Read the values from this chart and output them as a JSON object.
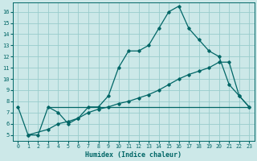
{
  "xlabel": "Humidex (Indice chaleur)",
  "xlim": [
    -0.5,
    23.5
  ],
  "ylim": [
    4.5,
    16.8
  ],
  "yticks": [
    5,
    6,
    7,
    8,
    9,
    10,
    11,
    12,
    13,
    14,
    15,
    16
  ],
  "xticks": [
    0,
    1,
    2,
    3,
    4,
    5,
    6,
    7,
    8,
    9,
    10,
    11,
    12,
    13,
    14,
    15,
    16,
    17,
    18,
    19,
    20,
    21,
    22,
    23
  ],
  "bg_color": "#cce8e8",
  "line_color": "#006666",
  "grid_color": "#99cccc",
  "curve1_x": [
    0,
    1,
    2,
    3,
    4,
    5,
    6,
    7,
    8,
    9,
    10,
    11,
    12,
    13,
    14,
    15,
    16,
    17,
    18,
    19,
    20,
    21,
    22,
    23
  ],
  "curve1_y": [
    7.5,
    5.0,
    5.0,
    7.5,
    7.0,
    6.0,
    6.5,
    7.5,
    7.5,
    8.5,
    11.0,
    12.5,
    12.5,
    13.0,
    14.5,
    16.0,
    16.5,
    14.5,
    13.5,
    12.5,
    12.0,
    9.5,
    8.5,
    7.5
  ],
  "curve2_x": [
    1,
    3,
    4,
    5,
    6,
    7,
    8,
    9,
    10,
    11,
    12,
    13,
    14,
    15,
    16,
    17,
    18,
    19,
    20,
    21,
    22,
    23
  ],
  "curve2_y": [
    5.0,
    5.5,
    6.0,
    6.2,
    6.5,
    7.0,
    7.3,
    7.5,
    7.8,
    8.0,
    8.3,
    8.6,
    9.0,
    9.5,
    10.0,
    10.4,
    10.7,
    11.0,
    11.5,
    11.5,
    8.5,
    7.5
  ],
  "curve3_x": [
    3,
    23
  ],
  "curve3_y": [
    7.5,
    7.5
  ]
}
